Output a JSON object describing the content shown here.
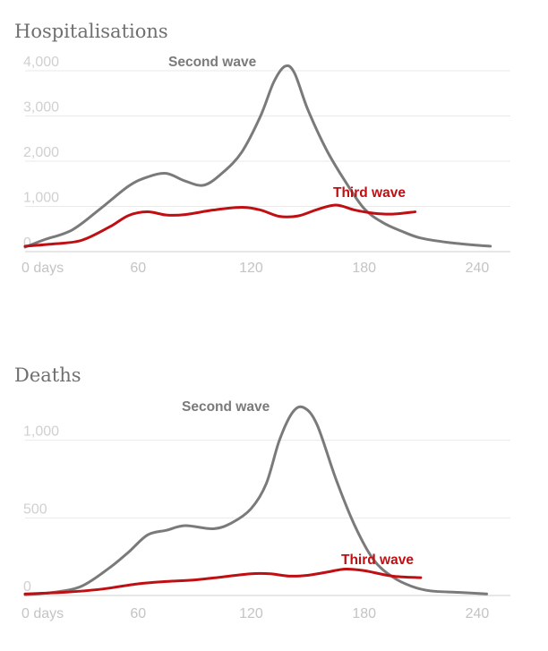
{
  "colors": {
    "second_wave": "#7a7a7a",
    "third_wave": "#c00f12"
  },
  "chart_data": [
    {
      "type": "line",
      "title": "Hospitalisations",
      "xlabel": "",
      "ylabel": "",
      "xlim": [
        0,
        250
      ],
      "ylim": [
        0,
        4000
      ],
      "x_ticks": [
        0,
        60,
        120,
        180,
        240
      ],
      "x_tick_labels": [
        "0 days",
        "60",
        "120",
        "180",
        "240"
      ],
      "y_ticks": [
        0,
        1000,
        2000,
        3000,
        4000
      ],
      "y_tick_labels": [
        "0",
        "1,000",
        "2,000",
        "3,000",
        "4,000"
      ],
      "grid": true,
      "series": [
        {
          "name": "Second wave",
          "x": [
            0,
            10,
            25,
            40,
            55,
            65,
            75,
            85,
            95,
            105,
            115,
            125,
            132,
            138,
            143,
            150,
            160,
            170,
            180,
            190,
            200,
            210,
            225,
            240,
            247
          ],
          "y": [
            100,
            260,
            480,
            950,
            1450,
            1650,
            1730,
            1560,
            1470,
            1750,
            2200,
            3000,
            3750,
            4100,
            3950,
            3150,
            2250,
            1550,
            950,
            640,
            450,
            300,
            200,
            140,
            120
          ]
        },
        {
          "name": "Third wave",
          "x": [
            0,
            15,
            30,
            45,
            55,
            65,
            75,
            85,
            100,
            115,
            125,
            135,
            145,
            155,
            165,
            175,
            185,
            195,
            207
          ],
          "y": [
            120,
            170,
            250,
            550,
            800,
            880,
            810,
            820,
            920,
            980,
            920,
            780,
            790,
            930,
            1030,
            920,
            850,
            830,
            880
          ]
        }
      ]
    },
    {
      "type": "line",
      "title": "Deaths",
      "xlabel": "",
      "ylabel": "",
      "xlim": [
        0,
        250
      ],
      "ylim": [
        0,
        1200
      ],
      "x_ticks": [
        0,
        60,
        120,
        180,
        240
      ],
      "x_tick_labels": [
        "0 days",
        "60",
        "120",
        "180",
        "240"
      ],
      "y_ticks": [
        0,
        500,
        1000
      ],
      "y_tick_labels": [
        "0",
        "500",
        "1,000"
      ],
      "grid": true,
      "series": [
        {
          "name": "Second wave",
          "x": [
            0,
            15,
            30,
            45,
            55,
            65,
            75,
            85,
            100,
            110,
            120,
            128,
            135,
            142,
            148,
            155,
            165,
            175,
            185,
            195,
            205,
            215,
            230,
            245
          ],
          "y": [
            5,
            20,
            60,
            180,
            280,
            390,
            420,
            450,
            430,
            470,
            560,
            720,
            1000,
            1180,
            1210,
            1100,
            750,
            450,
            230,
            120,
            60,
            30,
            20,
            10
          ]
        },
        {
          "name": "Third wave",
          "x": [
            0,
            20,
            40,
            60,
            75,
            90,
            105,
            120,
            130,
            140,
            150,
            160,
            170,
            180,
            195,
            210
          ],
          "y": [
            10,
            20,
            40,
            75,
            90,
            100,
            120,
            140,
            140,
            125,
            130,
            150,
            170,
            160,
            125,
            115
          ]
        }
      ]
    }
  ]
}
